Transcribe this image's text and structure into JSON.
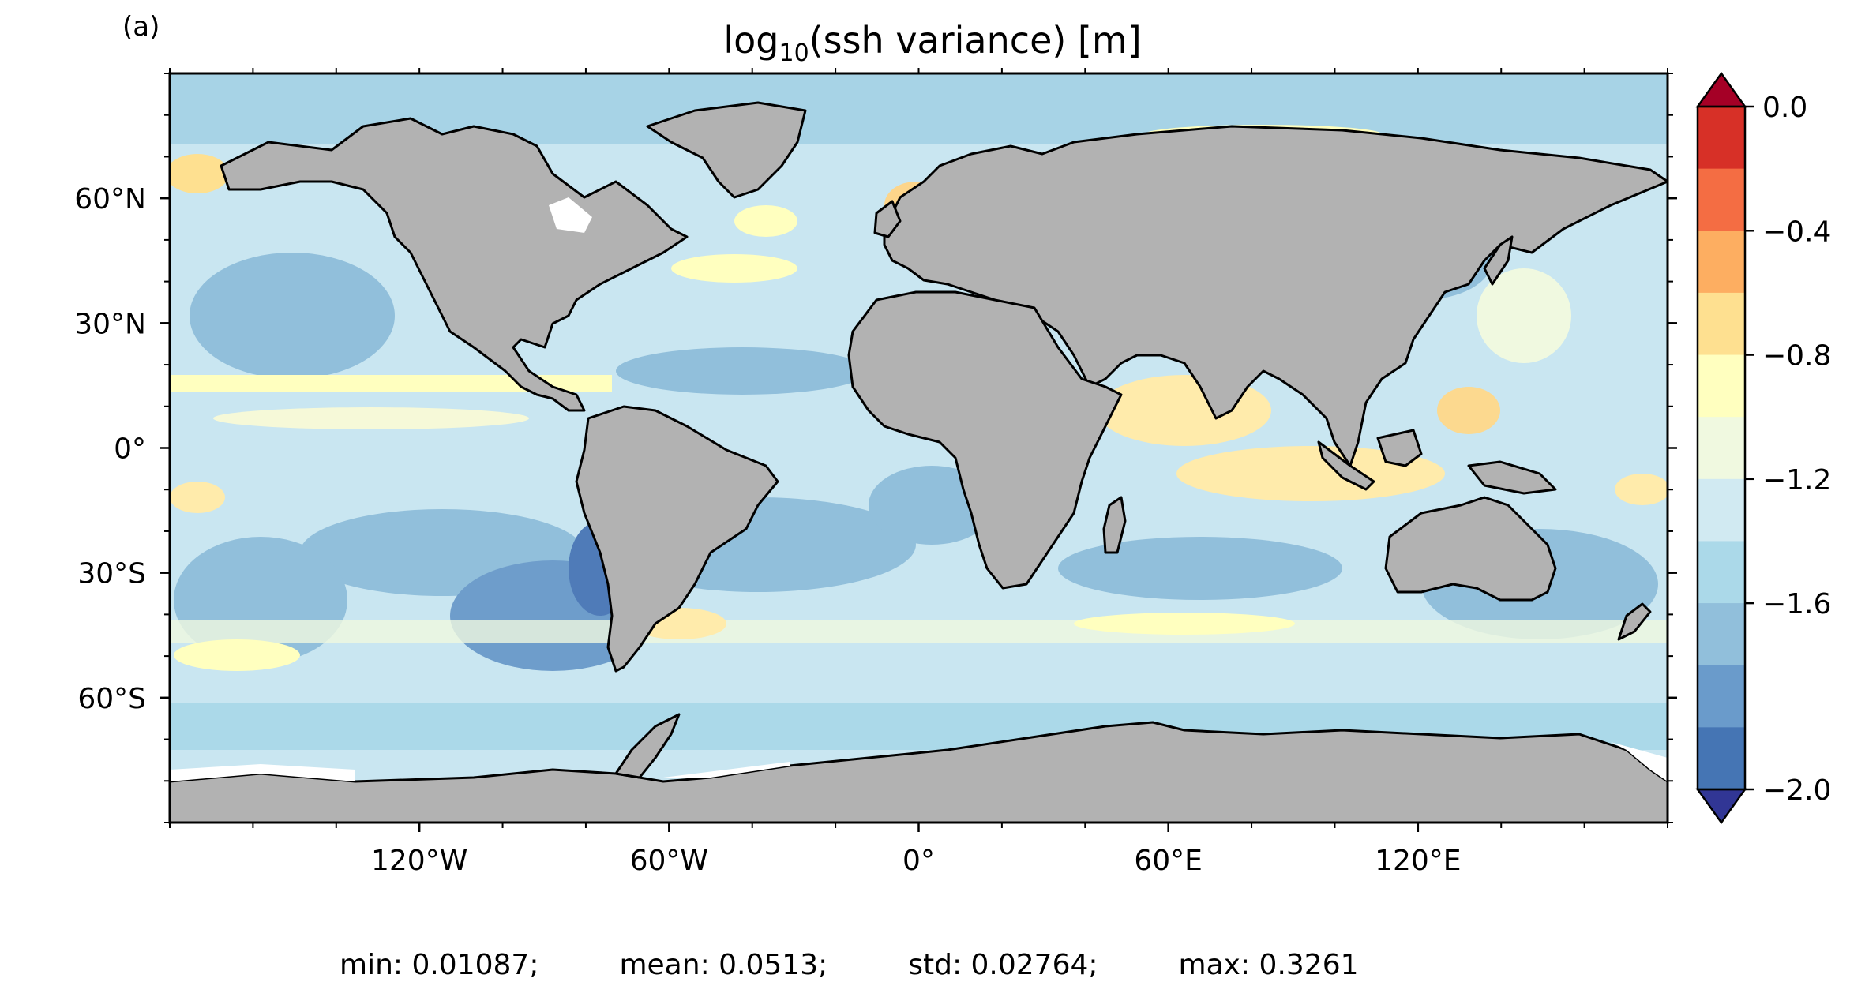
{
  "panel_label": "(a)",
  "title": {
    "main_pre": "log",
    "sub": "10",
    "main_post": "(ssh variance) [m]"
  },
  "map": {
    "projection": "PlateCarree",
    "lon_range": [
      -180,
      180
    ],
    "lat_range": [
      -90,
      90
    ],
    "lon_ticks": [
      {
        "value": -120,
        "label": "120°W"
      },
      {
        "value": -60,
        "label": "60°W"
      },
      {
        "value": 0,
        "label": "0°"
      },
      {
        "value": 60,
        "label": "60°E"
      },
      {
        "value": 120,
        "label": "120°E"
      }
    ],
    "lat_ticks": [
      {
        "value": 60,
        "label": "60°N"
      },
      {
        "value": 30,
        "label": "30°N"
      },
      {
        "value": 0,
        "label": "0°"
      },
      {
        "value": -30,
        "label": "30°S"
      },
      {
        "value": -60,
        "label": "60°S"
      }
    ],
    "land_color": "#b2b2b2",
    "coastline_color": "#000000"
  },
  "colorbar": {
    "ticks": [
      {
        "value": 0.0,
        "label": "0.0"
      },
      {
        "value": -0.4,
        "label": "−0.4"
      },
      {
        "value": -0.8,
        "label": "−0.8"
      },
      {
        "value": -1.2,
        "label": "−1.2"
      },
      {
        "value": -1.6,
        "label": "−1.6"
      },
      {
        "value": -2.0,
        "label": "−2.0"
      }
    ],
    "levels_top_to_bottom": [
      "#d73027",
      "#f46d43",
      "#fdae61",
      "#fee090",
      "#ffffbf",
      "#f0f9e0",
      "#d1eaf2",
      "#abd9e9",
      "#91bfdb",
      "#6a9bcb",
      "#4575b4"
    ],
    "extend_max_color": "#a50026",
    "extend_min_color": "#313695"
  },
  "stats": {
    "min": "min: 0.01087;",
    "mean": "mean: 0.0513;",
    "std": "std: 0.02764;",
    "max": "max: 0.3261"
  }
}
